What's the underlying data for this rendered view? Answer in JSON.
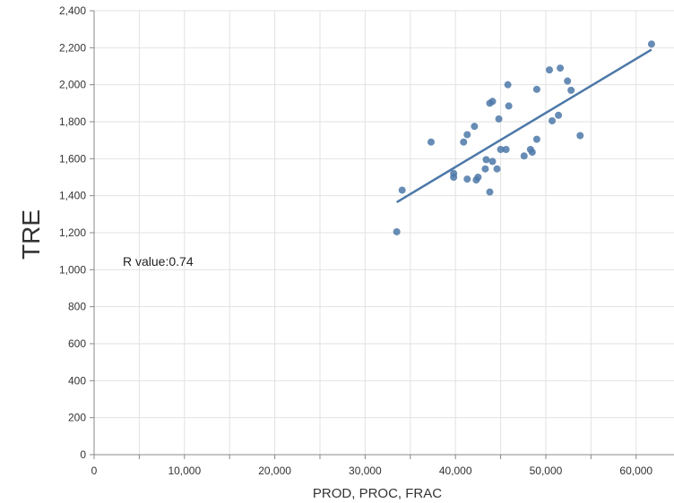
{
  "chart_data": {
    "type": "scatter",
    "xlabel": "PROD, PROC, FRAC",
    "ylabel": "TRE",
    "xlim": [
      0,
      63000
    ],
    "ylim": [
      0,
      2400
    ],
    "xticks": [
      0,
      10000,
      20000,
      30000,
      40000,
      50000,
      60000
    ],
    "xtick_labels": [
      "0",
      "10,000",
      "20,000",
      "30,000",
      "40,000",
      "50,000",
      "60,000"
    ],
    "yticks": [
      0,
      200,
      400,
      600,
      800,
      1000,
      1200,
      1400,
      1600,
      1800,
      2000,
      2200,
      2400
    ],
    "ytick_labels": [
      "0",
      "200",
      "400",
      "600",
      "800",
      "1,000",
      "1,200",
      "1,400",
      "1,600",
      "1,800",
      "2,000",
      "2,200",
      "2,400"
    ],
    "grid": true,
    "annotation": "R value:0.74",
    "point_color": "#4c78a8",
    "line_color": "#4c78a8",
    "points": [
      {
        "x": 33500,
        "y": 1205
      },
      {
        "x": 34100,
        "y": 1430
      },
      {
        "x": 37300,
        "y": 1690
      },
      {
        "x": 39800,
        "y": 1520
      },
      {
        "x": 39800,
        "y": 1500
      },
      {
        "x": 40900,
        "y": 1690
      },
      {
        "x": 41300,
        "y": 1730
      },
      {
        "x": 41300,
        "y": 1490
      },
      {
        "x": 42100,
        "y": 1775
      },
      {
        "x": 42300,
        "y": 1485
      },
      {
        "x": 42500,
        "y": 1500
      },
      {
        "x": 43300,
        "y": 1545
      },
      {
        "x": 43400,
        "y": 1595
      },
      {
        "x": 43800,
        "y": 1420
      },
      {
        "x": 43800,
        "y": 1900
      },
      {
        "x": 44100,
        "y": 1910
      },
      {
        "x": 44100,
        "y": 1585
      },
      {
        "x": 44600,
        "y": 1545
      },
      {
        "x": 44800,
        "y": 1815
      },
      {
        "x": 45000,
        "y": 1650
      },
      {
        "x": 45600,
        "y": 1650
      },
      {
        "x": 45800,
        "y": 2000
      },
      {
        "x": 45900,
        "y": 1885
      },
      {
        "x": 47600,
        "y": 1615
      },
      {
        "x": 48300,
        "y": 1650
      },
      {
        "x": 48500,
        "y": 1635
      },
      {
        "x": 49000,
        "y": 1705
      },
      {
        "x": 49000,
        "y": 1975
      },
      {
        "x": 50400,
        "y": 2080
      },
      {
        "x": 50700,
        "y": 1805
      },
      {
        "x": 51400,
        "y": 1835
      },
      {
        "x": 51600,
        "y": 2090
      },
      {
        "x": 52400,
        "y": 2020
      },
      {
        "x": 52800,
        "y": 1970
      },
      {
        "x": 53800,
        "y": 1725
      },
      {
        "x": 61700,
        "y": 2220
      }
    ],
    "trendline": {
      "x1": 33500,
      "y1": 1365,
      "x2": 61700,
      "y2": 2190
    }
  }
}
